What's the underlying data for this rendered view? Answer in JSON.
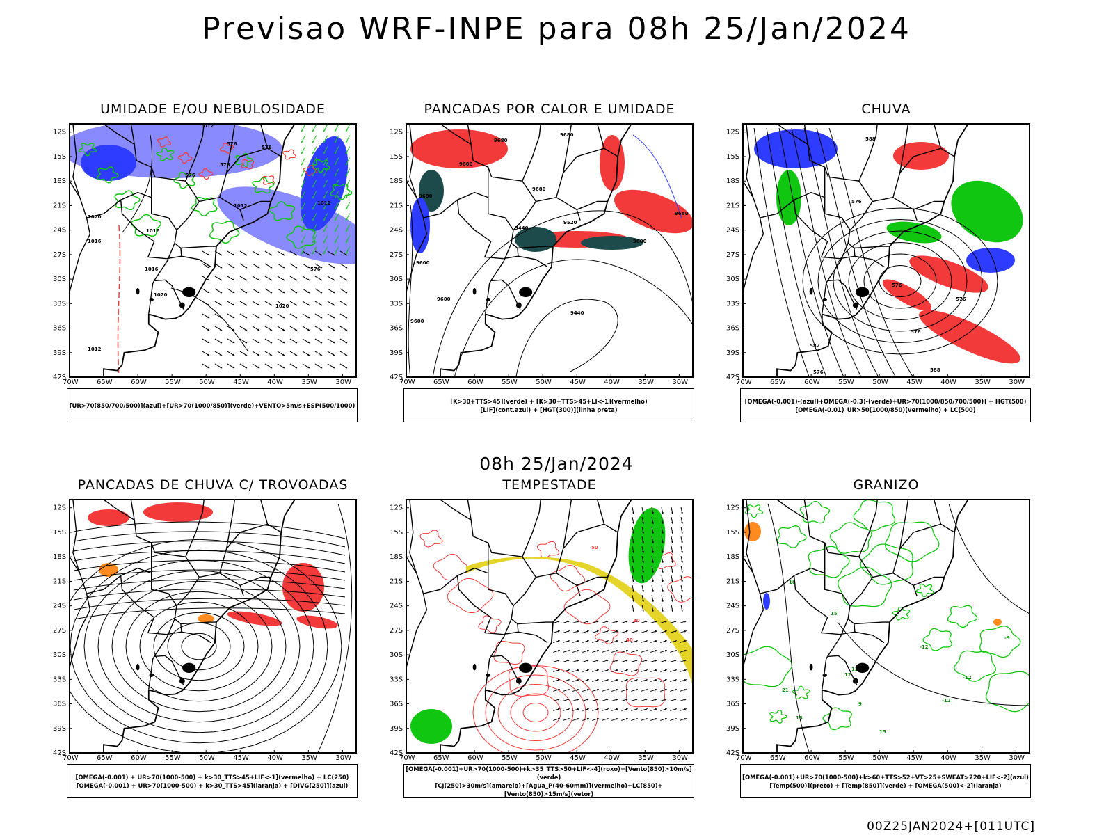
{
  "title": "Previsao WRF-INPE  para 08h 25/Jan/2024",
  "mid_time": "08h 25/Jan/2024",
  "footer": "00Z25JAN2024+[011UTC]",
  "lat_ticks": [
    "12S",
    "15S",
    "18S",
    "21S",
    "24S",
    "27S",
    "30S",
    "33S",
    "36S",
    "39S",
    "42S"
  ],
  "lon_ticks": [
    "70W",
    "65W",
    "60W",
    "55W",
    "50W",
    "45W",
    "40W",
    "35W",
    "30W"
  ],
  "colors": {
    "blue": "#2e3cff",
    "green": "#11c611",
    "red": "#f23a3a",
    "orange": "#ff8a1f",
    "yellow": "#e5d52a",
    "darkteal": "#1d4a4a",
    "lavender": "#8a8aff"
  },
  "panels": [
    {
      "title": "UMIDADE E/OU NEBULOSIDADE",
      "legend": [
        "[UR>70(850/700/500)](azul)+[UR>70(1000/850)](verde)+VENTO>5m/s+ESP(500/1000)"
      ],
      "contour_labels": [
        "1012",
        "1012",
        "1012",
        "1016",
        "1016",
        "1020",
        "1020",
        "1020",
        "1016",
        "1012",
        "576",
        "576",
        "576",
        "576",
        "576"
      ]
    },
    {
      "title": "PANCADAS POR CALOR E UMIDADE",
      "legend": [
        "[K>30+TTS>45](verde) + [K>30+TTS>45+LI<-1](vermelho)",
        "[LIF](cont.azul) + [HGT(300)](linha preta)"
      ],
      "contour_labels": [
        "9680",
        "9680",
        "9600",
        "9680",
        "9600",
        "9440",
        "9520",
        "9600",
        "9680",
        "9440",
        "9600",
        "9600",
        "9600"
      ]
    },
    {
      "title": "CHUVA",
      "legend": [
        "[OMEGA(-0.001)-(azul)+OMEGA(-0.3)-(verde)+UR>70(1000/850/700/500)] + HGT(500)",
        "[OMEGA(-0.01)_UR>50(1000/850)(vermelho) + LC(500)"
      ],
      "contour_labels": [
        "588",
        "576",
        "576",
        "576",
        "576",
        "582",
        "576",
        "588"
      ]
    },
    {
      "title": "PANCADAS DE CHUVA C/ TROVOADAS",
      "legend": [
        "[OMEGA(-0.001) + UR>70(1000-500) + k>30_TTS>45+LIF<-1](vermelho) + LC(250)",
        "[OMEGA(-0.001) + UR>70(1000-500) + k>30_TTS>45](laranja) + [DIVG(250)](azul)"
      ],
      "contour_labels": []
    },
    {
      "title": "TEMPESTADE",
      "legend": [
        "[OMEGA(-0.001)+UR>70(1000-500)+k>35_TTS>50+LIF<-4](roxo)+[Vento(850)>10m/s](verde)",
        "[CJ(250)>30m/s](amarelo)+[Agua_P(40-60mm)](vermelho)+LC(850)+[Vento(850)>15m/s](vetor)"
      ],
      "contour_labels": [
        "30",
        "40",
        "50"
      ]
    },
    {
      "title": "GRANIZO",
      "legend": [
        "[OMEGA(-0.001)+UR>70(1000-500)+k>60+TTS>52+VT>25+SWEAT>220+LIF<-2](azul)",
        "[Temp(500)](preto) + [Temp(850)](verde) + [OMEGA(500)<-2](laranja)"
      ],
      "contour_labels": [
        "18",
        "15",
        "12",
        "9",
        "21",
        "18",
        "15",
        "12",
        "-12",
        "-12",
        "-12",
        "-9"
      ]
    }
  ]
}
